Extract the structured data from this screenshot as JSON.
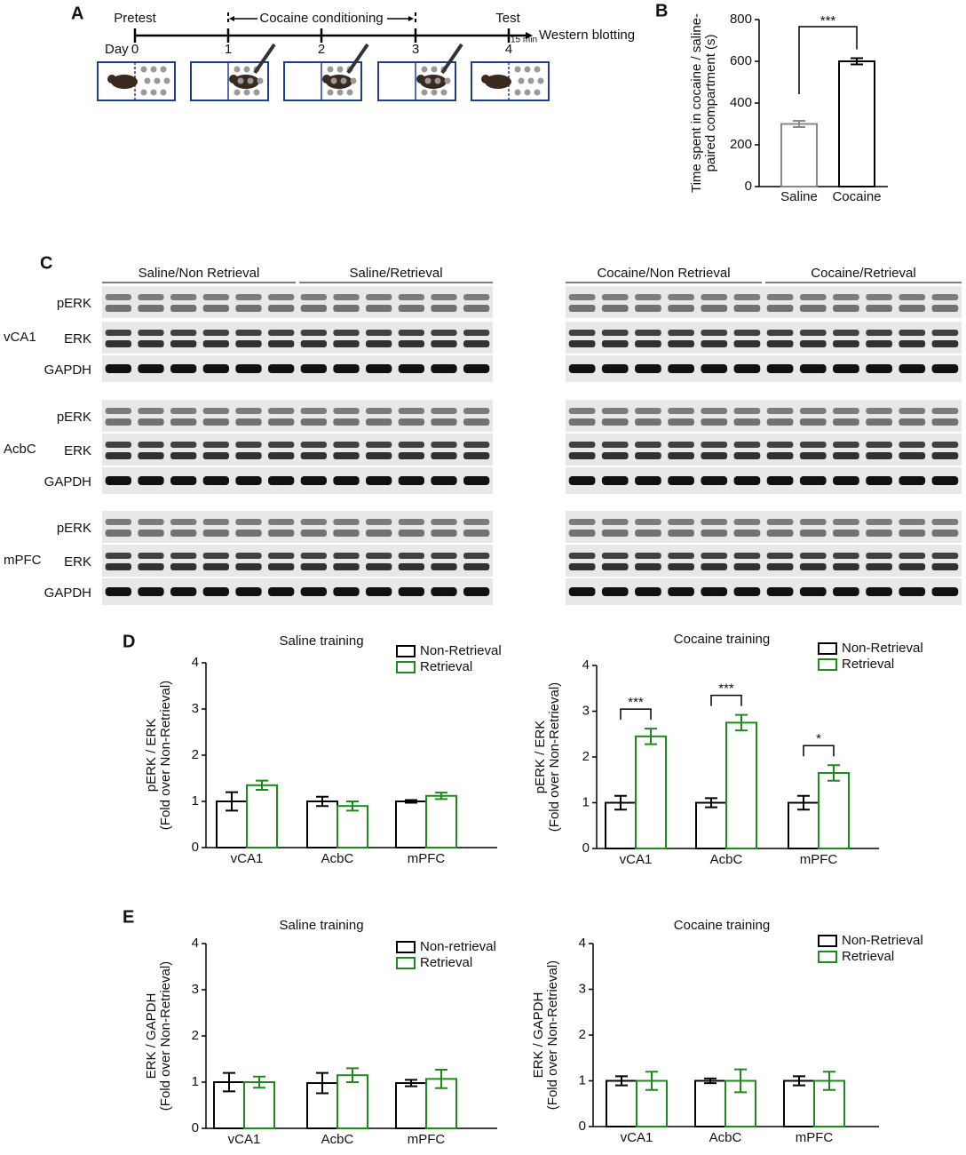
{
  "panel_labels": [
    "A",
    "B",
    "C",
    "D",
    "E"
  ],
  "diagram": {
    "pretest": "Pretest",
    "conditioning": "Cocaine conditioning",
    "test": "Test",
    "western": "Western blotting",
    "day": "Day",
    "days": [
      "0",
      "1",
      "2",
      "3",
      "4"
    ],
    "delay": "15 min"
  },
  "blots": {
    "groups": [
      "Saline/Non Retrieval",
      "Saline/Retrieval",
      "Cocaine/Non Retrieval",
      "Cocaine/Retrieval"
    ],
    "regions": [
      "vCA1",
      "AcbC",
      "mPFC"
    ],
    "rows": [
      "pERK",
      "ERK",
      "GAPDH"
    ]
  },
  "chart_data": [
    {
      "type": "bar",
      "ylabel": [
        "Time spent in cocaine / saline-",
        "paired compartment (s)"
      ],
      "categories": [
        "Saline",
        "Cocaine"
      ],
      "values": [
        300,
        600
      ],
      "errors": [
        15,
        15
      ],
      "colors": [
        "#888888",
        "#000000"
      ],
      "ylim": [
        0,
        800
      ],
      "yticks": [
        0,
        200,
        400,
        600,
        800
      ],
      "annotations": [
        "***"
      ]
    },
    {
      "type": "grouped-bar",
      "title": "Saline training",
      "ylabel": [
        "pERK / ERK",
        "(Fold over Non-Retrieval)"
      ],
      "categories": [
        "vCA1",
        "AcbC",
        "mPFC"
      ],
      "series": [
        {
          "name": "Non-Retrieval",
          "color": "#000000",
          "values": [
            1,
            1,
            1
          ],
          "errors": [
            0.2,
            0.1,
            0.03
          ]
        },
        {
          "name": "Retrieval",
          "color": "#1e8a1e",
          "values": [
            1.35,
            0.9,
            1.12
          ],
          "errors": [
            0.1,
            0.1,
            0.07
          ]
        }
      ],
      "ylim": [
        0,
        4
      ],
      "yticks": [
        0,
        1,
        2,
        3,
        4
      ]
    },
    {
      "type": "grouped-bar",
      "title": "Cocaine training",
      "ylabel": [
        "pERK / ERK",
        "(Fold over Non-Retrieval)"
      ],
      "categories": [
        "vCA1",
        "AcbC",
        "mPFC"
      ],
      "series": [
        {
          "name": "Non-Retrieval",
          "color": "#000000",
          "values": [
            1,
            1,
            1
          ],
          "errors": [
            0.15,
            0.1,
            0.15
          ]
        },
        {
          "name": "Retrieval",
          "color": "#1e8a1e",
          "values": [
            2.45,
            2.75,
            1.65
          ],
          "errors": [
            0.17,
            0.17,
            0.17
          ]
        }
      ],
      "ylim": [
        0,
        4
      ],
      "yticks": [
        0,
        1,
        2,
        3,
        4
      ],
      "annotations": [
        "***",
        "***",
        "*"
      ]
    },
    {
      "type": "grouped-bar",
      "title": "Saline training",
      "ylabel": [
        "ERK / GAPDH",
        "(Fold over Non-Retrieval)"
      ],
      "categories": [
        "vCA1",
        "AcbC",
        "mPFC"
      ],
      "series": [
        {
          "name": "Non-retrieval",
          "color": "#000000",
          "values": [
            1,
            0.98,
            0.98
          ],
          "errors": [
            0.2,
            0.22,
            0.07
          ]
        },
        {
          "name": "Retrieval",
          "color": "#1e8a1e",
          "values": [
            1,
            1.15,
            1.07
          ],
          "errors": [
            0.12,
            0.15,
            0.2
          ]
        }
      ],
      "ylim": [
        0,
        4
      ],
      "yticks": [
        0,
        1,
        2,
        3,
        4
      ]
    },
    {
      "type": "grouped-bar",
      "title": "Cocaine training",
      "ylabel": [
        "ERK / GAPDH",
        "(Fold over Non-Retrieval)"
      ],
      "categories": [
        "vCA1",
        "AcbC",
        "mPFC"
      ],
      "series": [
        {
          "name": "Non-Retrieval",
          "color": "#000000",
          "values": [
            1,
            1,
            1
          ],
          "errors": [
            0.1,
            0.05,
            0.1
          ]
        },
        {
          "name": "Retrieval",
          "color": "#1e8a1e",
          "values": [
            1,
            1,
            1
          ],
          "errors": [
            0.2,
            0.25,
            0.2
          ]
        }
      ],
      "ylim": [
        0,
        4
      ],
      "yticks": [
        0,
        1,
        2,
        3,
        4
      ]
    }
  ]
}
